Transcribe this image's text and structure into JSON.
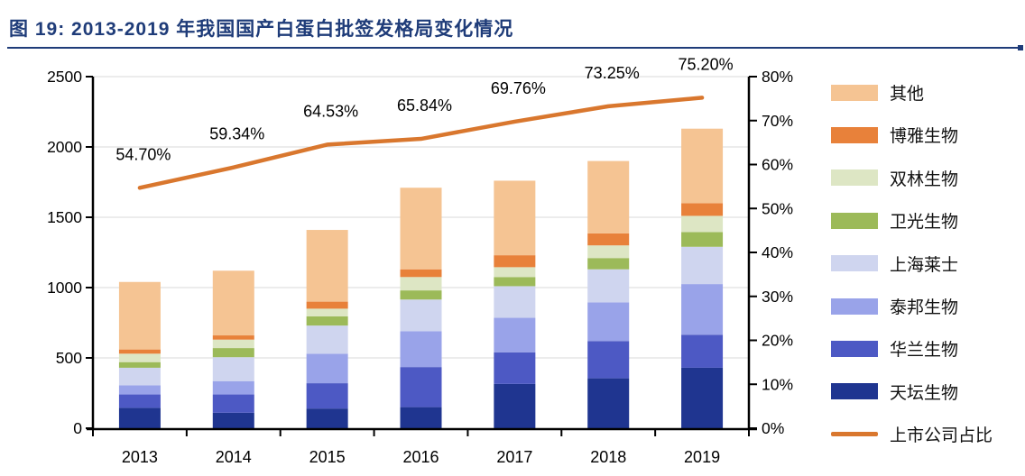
{
  "page": {
    "title_prefix": "图 19:",
    "title_text": "2013-2019 年我国国产白蛋白批签发格局变化情况",
    "title_color": "#1F3C79"
  },
  "chart_data": {
    "type": "bar",
    "subtype": "stacked-bar-with-line",
    "title": "图 19:2013-2019 年我国国产白蛋白批签发格局变化情况",
    "categories": [
      "2013",
      "2014",
      "2015",
      "2016",
      "2017",
      "2018",
      "2019"
    ],
    "series": [
      {
        "name": "天坛生物",
        "color": "#1F3590",
        "values": [
          145,
          110,
          140,
          150,
          315,
          355,
          430
        ]
      },
      {
        "name": "华兰生物",
        "color": "#4D59C4",
        "values": [
          95,
          130,
          180,
          285,
          225,
          265,
          235
        ]
      },
      {
        "name": "泰邦生物",
        "color": "#99A3E9",
        "values": [
          65,
          95,
          210,
          255,
          245,
          275,
          360
        ]
      },
      {
        "name": "上海莱士",
        "color": "#CFD5EF",
        "values": [
          125,
          170,
          200,
          225,
          225,
          235,
          265
        ]
      },
      {
        "name": "卫光生物",
        "color": "#9CBA59",
        "values": [
          40,
          65,
          65,
          65,
          65,
          80,
          105
        ]
      },
      {
        "name": "双林生物",
        "color": "#DDE6C4",
        "values": [
          60,
          60,
          55,
          95,
          70,
          90,
          115
        ]
      },
      {
        "name": "博雅生物",
        "color": "#E8813A",
        "values": [
          30,
          30,
          50,
          55,
          85,
          85,
          90
        ]
      },
      {
        "name": "其他",
        "color": "#F5C493",
        "values": [
          480,
          460,
          510,
          580,
          530,
          515,
          530
        ]
      }
    ],
    "line_series": {
      "name": "上市公司占比",
      "color": "#D9772E",
      "values": [
        54.7,
        59.34,
        64.53,
        65.84,
        69.76,
        73.25,
        75.2
      ],
      "labels": [
        "54.70%",
        "59.34%",
        "64.53%",
        "65.84%",
        "69.76%",
        "73.25%",
        "75.20%"
      ]
    },
    "left_axis": {
      "min": 0,
      "max": 2500,
      "step": 500,
      "tick_labels": [
        "0",
        "500",
        "1000",
        "1500",
        "2000",
        "2500"
      ]
    },
    "right_axis": {
      "min": 0,
      "max": 80,
      "step": 10,
      "tick_labels": [
        "0%",
        "10%",
        "20%",
        "30%",
        "40%",
        "50%",
        "60%",
        "70%",
        "80%"
      ]
    },
    "grid": true,
    "gridline_color": "#D9D9D9",
    "legend_position": "right",
    "legend": [
      {
        "label": "其他",
        "color": "#F5C493",
        "type": "box"
      },
      {
        "label": "博雅生物",
        "color": "#E8813A",
        "type": "box"
      },
      {
        "label": "双林生物",
        "color": "#DDE6C4",
        "type": "box"
      },
      {
        "label": "卫光生物",
        "color": "#9CBA59",
        "type": "box"
      },
      {
        "label": "上海莱士",
        "color": "#CFD5EF",
        "type": "box"
      },
      {
        "label": "泰邦生物",
        "color": "#99A3E9",
        "type": "box"
      },
      {
        "label": "华兰生物",
        "color": "#4D59C4",
        "type": "box"
      },
      {
        "label": "天坛生物",
        "color": "#1F3590",
        "type": "box"
      },
      {
        "label": "上市公司占比",
        "color": "#D9772E",
        "type": "line"
      }
    ]
  }
}
